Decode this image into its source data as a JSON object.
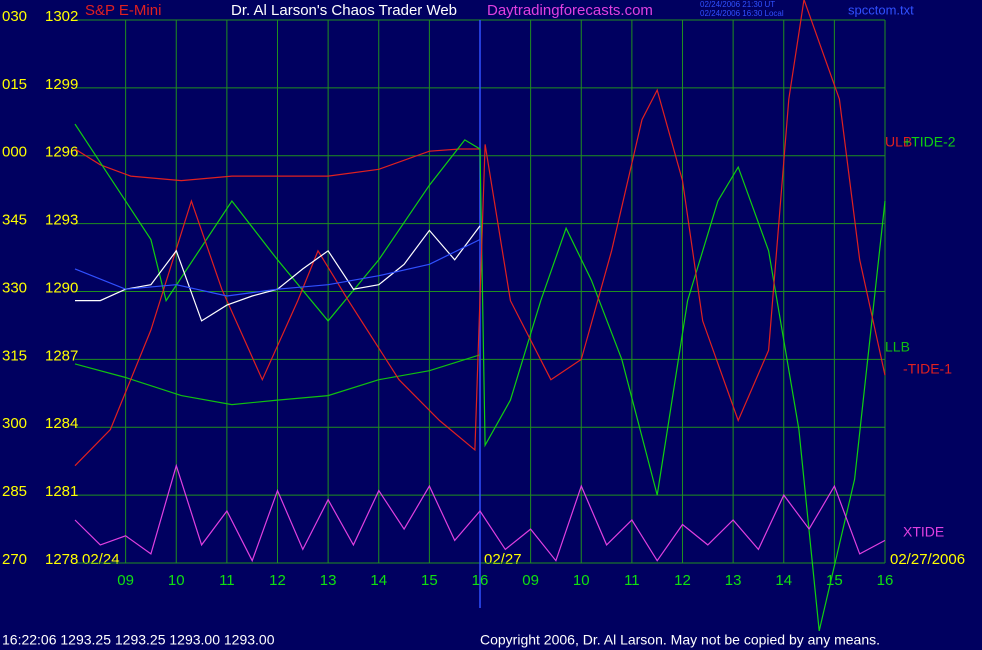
{
  "chart_data": {
    "type": "line",
    "title": "Dr. Al Larson's Chaos Trader Web",
    "subtitle": "S&P E-Mini",
    "website": "Daytradingforecasts.com",
    "timestamps": [
      "02/24/2006 21:30 UT",
      "02/24/2006 16:30 Local"
    ],
    "file": "spcctom.txt",
    "quote": "16:22:06  1293.25 1293.25 1293.00 1293.00",
    "copyright": "Copyright 2006, Dr. Al Larson. May not be copied by any means.",
    "date_labels": [
      "02/24",
      "02/27",
      "02/27/2006"
    ],
    "ylim": [
      1278,
      1302
    ],
    "yticks": [
      1278,
      1281,
      1284,
      1287,
      1290,
      1293,
      1296,
      1299,
      1302
    ],
    "y_angle_labels": [
      "270",
      "285",
      "300",
      "315",
      "330",
      "345",
      "000",
      "015",
      "030"
    ],
    "xlim": [
      8,
      24
    ],
    "xticks": [
      {
        "value": 9,
        "label": "09"
      },
      10,
      11,
      12,
      13,
      14,
      15,
      16,
      {
        "value": 17,
        "label": "09"
      },
      {
        "value": 18,
        "label": "10"
      },
      {
        "value": 19,
        "label": "11"
      },
      {
        "value": 20,
        "label": "12"
      },
      {
        "value": 21,
        "label": "13"
      },
      {
        "value": 22,
        "label": "14"
      },
      {
        "value": 23,
        "label": "15"
      },
      {
        "value": 24,
        "label": "16"
      }
    ],
    "day_divider": 16,
    "grid": true,
    "series": [
      {
        "name": "ULB",
        "color": "#e02020",
        "x": [
          8,
          8.5,
          9.1,
          10.1,
          11.1,
          12,
          13,
          14,
          15,
          15.6,
          16
        ],
        "values": [
          1296.3,
          1295.6,
          1295.1,
          1294.9,
          1295.1,
          1295.1,
          1295.1,
          1295.4,
          1296.2,
          1296.3,
          1296.3
        ]
      },
      {
        "name": "+TIDE-2",
        "color": "#10d010",
        "x": [
          8,
          9.5,
          9.8,
          11.1,
          12,
          13,
          14,
          15,
          15.7,
          16,
          16.1,
          16.6,
          17.2,
          17.7,
          18.2,
          18.8,
          19.5,
          20.1,
          20.7,
          21.1,
          21.7,
          22.3,
          22.7,
          23.4,
          24
        ],
        "values": [
          1297.4,
          1292.3,
          1289.6,
          1294.0,
          1291.4,
          1288.7,
          1291.4,
          1294.7,
          1296.7,
          1296.3,
          1283.2,
          1285.2,
          1289.6,
          1292.8,
          1290.5,
          1287.0,
          1281.0,
          1289.6,
          1294.0,
          1295.5,
          1291.8,
          1283.9,
          1275.0,
          1281.7,
          1294.0
        ]
      },
      {
        "name": "LLB",
        "color": "#10c010",
        "x": [
          8,
          9,
          10.1,
          11.1,
          12,
          13,
          14,
          15,
          16
        ],
        "values": [
          1286.8,
          1286.2,
          1285.4,
          1285.0,
          1285.2,
          1285.4,
          1286.1,
          1286.5,
          1287.2
        ]
      },
      {
        "name": "-TIDE-1",
        "color": "#e02020",
        "x": [
          8,
          8.7,
          9.5,
          10.3,
          10.9,
          11.7,
          12.4,
          12.8,
          13.4,
          14.4,
          15.2,
          15.9,
          16.1,
          16.6,
          17.4,
          18,
          18.6,
          19.2,
          19.5,
          20,
          20.4,
          21.1,
          21.7,
          22.1,
          22.4,
          23.1,
          23.5,
          24
        ],
        "values": [
          1282.3,
          1283.9,
          1288.3,
          1294.0,
          1290.1,
          1286.1,
          1289.6,
          1291.8,
          1289.6,
          1286.1,
          1284.3,
          1283.0,
          1296.5,
          1289.6,
          1286.1,
          1287.0,
          1291.8,
          1297.6,
          1298.9,
          1294.9,
          1288.7,
          1284.3,
          1287.4,
          1298.5,
          1302.9,
          1298.5,
          1291.4,
          1286.3
        ]
      },
      {
        "name": "XTIDE",
        "color": "#e040e0",
        "x": [
          8,
          8.5,
          9,
          9.5,
          10,
          10.5,
          11,
          11.5,
          12,
          12.5,
          13,
          13.5,
          14,
          14.5,
          15,
          15.5,
          16,
          16.5,
          17,
          17.5,
          18,
          18.5,
          19,
          19.5,
          20,
          20.5,
          21,
          21.5,
          22,
          22.5,
          23,
          23.5,
          24
        ],
        "values": [
          1279.9,
          1278.8,
          1279.2,
          1278.4,
          1282.3,
          1278.8,
          1280.3,
          1278.1,
          1281.2,
          1278.6,
          1280.8,
          1278.8,
          1281.2,
          1279.5,
          1281.4,
          1279.0,
          1280.3,
          1278.6,
          1279.5,
          1278.1,
          1281.4,
          1278.8,
          1279.9,
          1278.1,
          1279.7,
          1278.8,
          1279.9,
          1278.6,
          1281.0,
          1279.5,
          1281.4,
          1278.4,
          1279.0
        ]
      },
      {
        "color": "#ffffff",
        "x": [
          8,
          8.5,
          9,
          9.5,
          10,
          10.5,
          11,
          11.5,
          12,
          12.5,
          13,
          13.5,
          14,
          14.5,
          15,
          15.5,
          16
        ],
        "values": [
          1289.6,
          1289.6,
          1290.1,
          1290.3,
          1291.8,
          1288.7,
          1289.4,
          1289.8,
          1290.1,
          1291.0,
          1291.8,
          1290.1,
          1290.3,
          1291.2,
          1292.7,
          1291.4,
          1292.9
        ]
      },
      {
        "color": "#3050ff",
        "x": [
          8,
          9,
          10,
          11,
          12,
          13,
          14,
          15,
          16
        ],
        "values": [
          1291.0,
          1290.1,
          1290.3,
          1289.8,
          1290.1,
          1290.3,
          1290.7,
          1291.2,
          1292.3
        ]
      }
    ]
  }
}
